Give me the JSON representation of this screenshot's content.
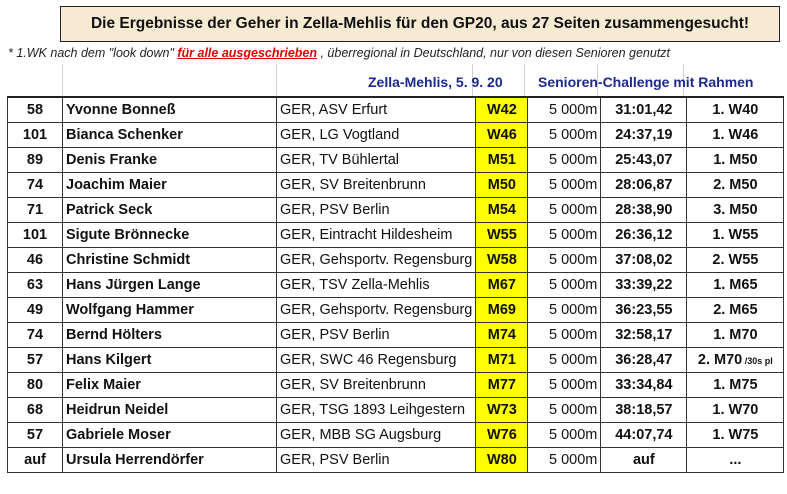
{
  "header": {
    "title": "Die Ergebnisse der Geher in Zella-Mehlis für den GP20, aus 27 Seiten zusammengesucht!",
    "note_prefix": "* 1.WK nach dem \"look down\" ",
    "note_red": "für alle ausgeschrieben",
    "note_suffix": " , überregional in Deutschland, nur von diesen Senioren genutzt",
    "event": "Zella-Mehlis,  5. 9. 20",
    "challenge": "Senioren-Challenge mit Rahmen"
  },
  "rows": [
    {
      "start": "58",
      "name": "Yvonne Bonneß",
      "club": "GER, ASV Erfurt",
      "ak": "W42",
      "dist": "5 000m",
      "time": "31:01,42",
      "place": "1. W40",
      "place_extra": ""
    },
    {
      "start": "101",
      "name": "Bianca Schenker",
      "club": "GER, LG Vogtland",
      "ak": "W46",
      "dist": "5 000m",
      "time": "24:37,19",
      "place": "1. W46",
      "place_extra": ""
    },
    {
      "start": "89",
      "name": "Denis Franke",
      "club": "GER, TV Bühlertal",
      "ak": "M51",
      "dist": "5 000m",
      "time": "25:43,07",
      "place": "1. M50",
      "place_extra": ""
    },
    {
      "start": "74",
      "name": "Joachim Maier",
      "club": "GER, SV Breitenbrunn",
      "ak": "M50",
      "dist": "5 000m",
      "time": "28:06,87",
      "place": "2. M50",
      "place_extra": ""
    },
    {
      "start": "71",
      "name": "Patrick Seck",
      "club": "GER, PSV Berlin",
      "ak": "M54",
      "dist": "5 000m",
      "time": "28:38,90",
      "place": "3. M50",
      "place_extra": ""
    },
    {
      "start": "101",
      "name": "Sigute Brönnecke",
      "club": "GER, Eintracht Hildesheim",
      "ak": "W55",
      "dist": "5 000m",
      "time": "26:36,12",
      "place": "1. W55",
      "place_extra": ""
    },
    {
      "start": "46",
      "name": "Christine Schmidt",
      "club": "GER, Gehsportv. Regensburg",
      "ak": "W58",
      "dist": "5 000m",
      "time": "37:08,02",
      "place": "2. W55",
      "place_extra": ""
    },
    {
      "start": "63",
      "name": "Hans Jürgen Lange",
      "club": "GER, TSV Zella-Mehlis",
      "ak": "M67",
      "dist": "5 000m",
      "time": "33:39,22",
      "place": "1. M65",
      "place_extra": ""
    },
    {
      "start": "49",
      "name": "Wolfgang Hammer",
      "club": "GER, Gehsportv. Regensburg",
      "ak": "M69",
      "dist": "5 000m",
      "time": "36:23,55",
      "place": "2. M65",
      "place_extra": ""
    },
    {
      "start": "74",
      "name": "Bernd Hölters",
      "club": "GER, PSV Berlin",
      "ak": "M74",
      "dist": "5 000m",
      "time": "32:58,17",
      "place": "1. M70",
      "place_extra": ""
    },
    {
      "start": "57",
      "name": "Hans Kilgert",
      "club": "GER, SWC 46 Regensburg",
      "ak": "M71",
      "dist": "5 000m",
      "time": "36:28,47",
      "place": "2. M70",
      "place_extra": " /30s pl"
    },
    {
      "start": "80",
      "name": "Felix Maier",
      "club": "GER, SV Breitenbrunn",
      "ak": "M77",
      "dist": "5 000m",
      "time": "33:34,84",
      "place": "1. M75",
      "place_extra": ""
    },
    {
      "start": "68",
      "name": "Heidrun Neidel",
      "club": "GER, TSG 1893 Leihgestern",
      "ak": "W73",
      "dist": "5 000m",
      "time": "38:18,57",
      "place": "1. W70",
      "place_extra": ""
    },
    {
      "start": "57",
      "name": "Gabriele Moser",
      "club": "GER, MBB SG Augsburg",
      "ak": "W76",
      "dist": "5 000m",
      "time": "44:07,74",
      "place": "1. W75",
      "place_extra": ""
    },
    {
      "start": "auf",
      "name": "Ursula Herrendörfer",
      "club": "GER, PSV Berlin",
      "ak": "W80",
      "dist": "5 000m",
      "time": "auf",
      "place": "...",
      "place_extra": ""
    }
  ]
}
